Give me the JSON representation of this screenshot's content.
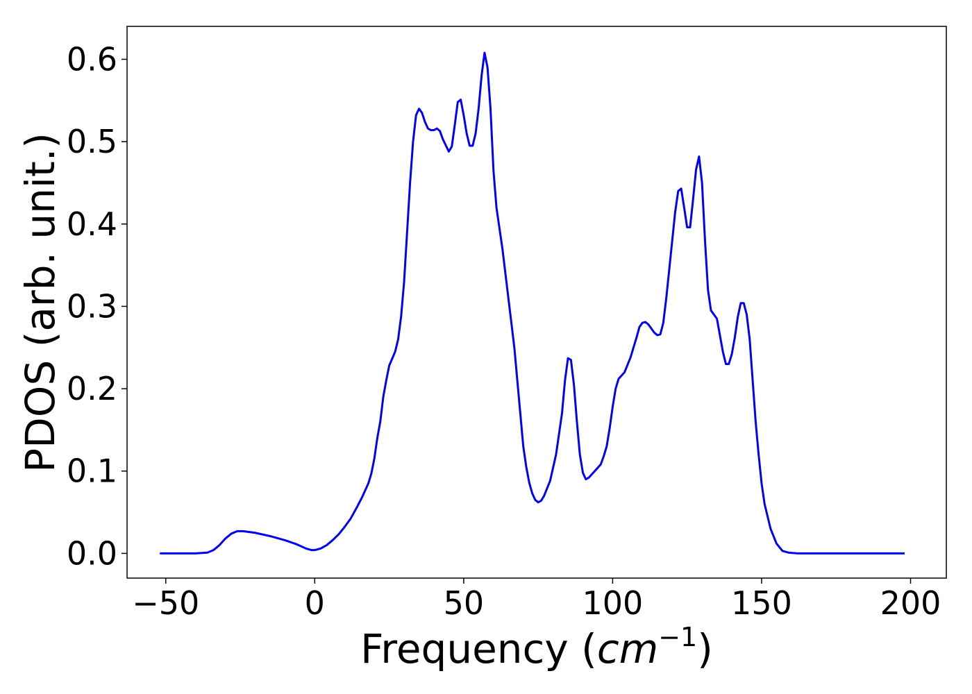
{
  "chart_data": {
    "type": "line",
    "xlabel_main": "Frequency (",
    "xlabel_math": "cm",
    "xlabel_sup": "−1",
    "xlabel_close": ")",
    "ylabel": "PDOS (arb. unit.)",
    "xlim": [
      -63,
      212
    ],
    "ylim": [
      -0.03,
      0.64
    ],
    "x_ticks": [
      -50,
      0,
      50,
      100,
      150,
      200
    ],
    "x_tick_labels": [
      "−50",
      "0",
      "50",
      "100",
      "150",
      "200"
    ],
    "y_ticks": [
      0.0,
      0.1,
      0.2,
      0.3,
      0.4,
      0.5,
      0.6
    ],
    "y_tick_labels": [
      "0.0",
      "0.1",
      "0.2",
      "0.3",
      "0.4",
      "0.5",
      "0.6"
    ],
    "grid": false,
    "series": [
      {
        "color": "#0000ff",
        "points": [
          [
            -52,
            0.0
          ],
          [
            -40,
            0.0
          ],
          [
            -36,
            0.001
          ],
          [
            -34,
            0.004
          ],
          [
            -32,
            0.01
          ],
          [
            -30,
            0.018
          ],
          [
            -28,
            0.024
          ],
          [
            -26,
            0.027
          ],
          [
            -24,
            0.027
          ],
          [
            -20,
            0.025
          ],
          [
            -15,
            0.021
          ],
          [
            -10,
            0.016
          ],
          [
            -6,
            0.011
          ],
          [
            -3,
            0.006
          ],
          [
            -1,
            0.004
          ],
          [
            0,
            0.004
          ],
          [
            2,
            0.006
          ],
          [
            4,
            0.01
          ],
          [
            6,
            0.016
          ],
          [
            8,
            0.023
          ],
          [
            10,
            0.032
          ],
          [
            12,
            0.042
          ],
          [
            14,
            0.055
          ],
          [
            16,
            0.069
          ],
          [
            18,
            0.085
          ],
          [
            19,
            0.097
          ],
          [
            20,
            0.115
          ],
          [
            21,
            0.14
          ],
          [
            22,
            0.16
          ],
          [
            23,
            0.19
          ],
          [
            24,
            0.21
          ],
          [
            25,
            0.228
          ],
          [
            27,
            0.245
          ],
          [
            28,
            0.26
          ],
          [
            29,
            0.288
          ],
          [
            30,
            0.33
          ],
          [
            31,
            0.39
          ],
          [
            32,
            0.45
          ],
          [
            33,
            0.5
          ],
          [
            34,
            0.532
          ],
          [
            35,
            0.54
          ],
          [
            36,
            0.535
          ],
          [
            37,
            0.524
          ],
          [
            38,
            0.516
          ],
          [
            39,
            0.514
          ],
          [
            40,
            0.514
          ],
          [
            41,
            0.516
          ],
          [
            42,
            0.513
          ],
          [
            43,
            0.503
          ],
          [
            45,
            0.488
          ],
          [
            46,
            0.494
          ],
          [
            47,
            0.52
          ],
          [
            48,
            0.548
          ],
          [
            49,
            0.551
          ],
          [
            50,
            0.532
          ],
          [
            51,
            0.51
          ],
          [
            52,
            0.495
          ],
          [
            53,
            0.495
          ],
          [
            54,
            0.51
          ],
          [
            55,
            0.54
          ],
          [
            56,
            0.58
          ],
          [
            57,
            0.608
          ],
          [
            58,
            0.59
          ],
          [
            59,
            0.54
          ],
          [
            60,
            0.465
          ],
          [
            61,
            0.42
          ],
          [
            63,
            0.37
          ],
          [
            65,
            0.31
          ],
          [
            67,
            0.25
          ],
          [
            69,
            0.17
          ],
          [
            70,
            0.13
          ],
          [
            71,
            0.105
          ],
          [
            72,
            0.086
          ],
          [
            73,
            0.073
          ],
          [
            74,
            0.065
          ],
          [
            75,
            0.062
          ],
          [
            76,
            0.064
          ],
          [
            77,
            0.07
          ],
          [
            79,
            0.088
          ],
          [
            81,
            0.12
          ],
          [
            83,
            0.17
          ],
          [
            84,
            0.21
          ],
          [
            85,
            0.237
          ],
          [
            86,
            0.235
          ],
          [
            87,
            0.205
          ],
          [
            88,
            0.16
          ],
          [
            89,
            0.12
          ],
          [
            90,
            0.098
          ],
          [
            91,
            0.09
          ],
          [
            92,
            0.092
          ],
          [
            94,
            0.1
          ],
          [
            96,
            0.108
          ],
          [
            97,
            0.118
          ],
          [
            98,
            0.13
          ],
          [
            99,
            0.152
          ],
          [
            100,
            0.178
          ],
          [
            101,
            0.2
          ],
          [
            102,
            0.212
          ],
          [
            104,
            0.22
          ],
          [
            106,
            0.238
          ],
          [
            108,
            0.262
          ],
          [
            109,
            0.275
          ],
          [
            110,
            0.28
          ],
          [
            111,
            0.281
          ],
          [
            112,
            0.278
          ],
          [
            114,
            0.268
          ],
          [
            115,
            0.265
          ],
          [
            116,
            0.266
          ],
          [
            117,
            0.28
          ],
          [
            118,
            0.31
          ],
          [
            119,
            0.345
          ],
          [
            120,
            0.38
          ],
          [
            121,
            0.415
          ],
          [
            122,
            0.44
          ],
          [
            123,
            0.443
          ],
          [
            124,
            0.42
          ],
          [
            125,
            0.396
          ],
          [
            126,
            0.396
          ],
          [
            127,
            0.43
          ],
          [
            128,
            0.466
          ],
          [
            129,
            0.482
          ],
          [
            130,
            0.45
          ],
          [
            131,
            0.38
          ],
          [
            132,
            0.32
          ],
          [
            133,
            0.295
          ],
          [
            134,
            0.29
          ],
          [
            135,
            0.285
          ],
          [
            136,
            0.265
          ],
          [
            137,
            0.245
          ],
          [
            138,
            0.23
          ],
          [
            139,
            0.23
          ],
          [
            140,
            0.242
          ],
          [
            141,
            0.262
          ],
          [
            142,
            0.287
          ],
          [
            143,
            0.304
          ],
          [
            144,
            0.304
          ],
          [
            145,
            0.29
          ],
          [
            146,
            0.26
          ],
          [
            147,
            0.21
          ],
          [
            148,
            0.16
          ],
          [
            149,
            0.12
          ],
          [
            150,
            0.085
          ],
          [
            151,
            0.06
          ],
          [
            152,
            0.045
          ],
          [
            153,
            0.03
          ],
          [
            155,
            0.012
          ],
          [
            157,
            0.003
          ],
          [
            159,
            0.001
          ],
          [
            162,
            0.0
          ],
          [
            175,
            0.0
          ],
          [
            198,
            0.0
          ]
        ]
      }
    ]
  }
}
